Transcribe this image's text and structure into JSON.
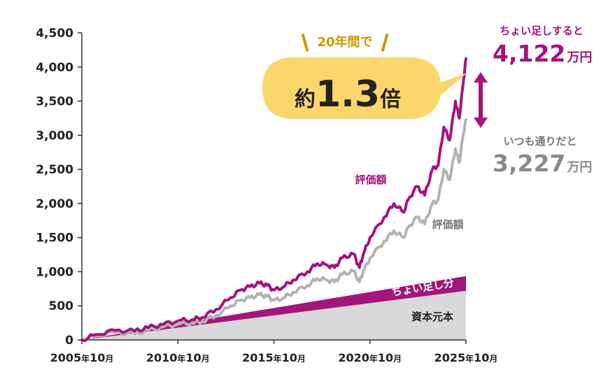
{
  "chart_data": {
    "type": "area",
    "x_ticks": [
      "2005年10月",
      "2010年10月",
      "2015年10月",
      "2020年10月",
      "2025年10月"
    ],
    "x_tick_parts": [
      {
        "year": "2005",
        "unit": "年",
        "month": "10",
        "suffix": "月"
      },
      {
        "year": "2010",
        "unit": "年",
        "month": "10",
        "suffix": "月"
      },
      {
        "year": "2015",
        "unit": "年",
        "month": "10",
        "suffix": "月"
      },
      {
        "year": "2020",
        "unit": "年",
        "month": "10",
        "suffix": "月"
      },
      {
        "year": "2025",
        "unit": "年",
        "month": "10",
        "suffix": "月"
      }
    ],
    "xlim": [
      2005.75,
      2025.75
    ],
    "y_ticks": [
      "0",
      "500",
      "1,000",
      "1,500",
      "2,000",
      "2,500",
      "3,000",
      "3,500",
      "4,000",
      "4,500"
    ],
    "ylim": [
      0,
      4500
    ],
    "grid": false,
    "series": [
      {
        "name": "資本元本",
        "kind": "area",
        "color": "#d9d9d9",
        "x": [
          2005.75,
          2025.75
        ],
        "values": [
          0,
          720
        ]
      },
      {
        "name": "ちょい足し分",
        "kind": "area",
        "color": "#a3157a",
        "x": [
          2005.75,
          2025.75
        ],
        "values": [
          0,
          936
        ]
      },
      {
        "name": "評価額",
        "kind": "line",
        "color": "#b3b3b3",
        "x": [
          2005.75,
          2006.5,
          2007.5,
          2008.5,
          2009.2,
          2010,
          2010.75,
          2011.5,
          2012,
          2012.75,
          2013.5,
          2014,
          2014.5,
          2015,
          2015.4,
          2015.75,
          2016.2,
          2016.75,
          2017.5,
          2018,
          2018.5,
          2018.9,
          2019.3,
          2019.9,
          2020.2,
          2020.4,
          2020.75,
          2021.5,
          2022,
          2022.5,
          2022.75,
          2023.2,
          2023.6,
          2024,
          2024.3,
          2024.6,
          2024.9,
          2025.2,
          2025.4,
          2025.6,
          2025.75
        ],
        "values": [
          0,
          60,
          110,
          90,
          140,
          190,
          230,
          250,
          270,
          360,
          500,
          580,
          620,
          660,
          640,
          580,
          610,
          700,
          800,
          900,
          880,
          850,
          960,
          1010,
          850,
          1000,
          1200,
          1450,
          1600,
          1500,
          1650,
          1800,
          1700,
          2000,
          2050,
          2500,
          2350,
          2800,
          2600,
          3000,
          3227
        ]
      },
      {
        "name": "評価額",
        "kind": "line",
        "color": "#a3157a",
        "x": [
          2005.75,
          2006.5,
          2007.5,
          2008.5,
          2009.2,
          2010,
          2010.75,
          2011.5,
          2012,
          2012.75,
          2013.5,
          2014,
          2014.5,
          2015,
          2015.4,
          2015.75,
          2016.2,
          2016.75,
          2017.5,
          2018,
          2018.5,
          2018.9,
          2019.3,
          2019.9,
          2020.2,
          2020.4,
          2020.75,
          2021.5,
          2022,
          2022.5,
          2022.75,
          2023.2,
          2023.6,
          2024,
          2024.3,
          2024.6,
          2024.9,
          2025.2,
          2025.4,
          2025.6,
          2025.75
        ],
        "values": [
          0,
          80,
          140,
          130,
          180,
          230,
          280,
          300,
          330,
          450,
          620,
          730,
          780,
          830,
          800,
          730,
          770,
          880,
          1000,
          1120,
          1100,
          1060,
          1200,
          1260,
          1060,
          1250,
          1500,
          1800,
          2000,
          1870,
          2060,
          2250,
          2120,
          2500,
          2560,
          3120,
          2930,
          3500,
          3250,
          3750,
          4122
        ]
      }
    ],
    "annotations": {
      "bubble_top": "20年間で",
      "bubble_prefix": "約",
      "bubble_value": "1.3",
      "bubble_suffix": "倍",
      "choi_label": "ちょい足しすると",
      "choi_value": "4,122",
      "choi_unit": "万円",
      "normal_label": "いつも通りだと",
      "normal_value": "3,227",
      "normal_unit": "万円",
      "line_label_pink": "評価額",
      "line_label_gray": "評価額",
      "band_label": "ちょい足し分",
      "base_label": "資本元本"
    }
  }
}
